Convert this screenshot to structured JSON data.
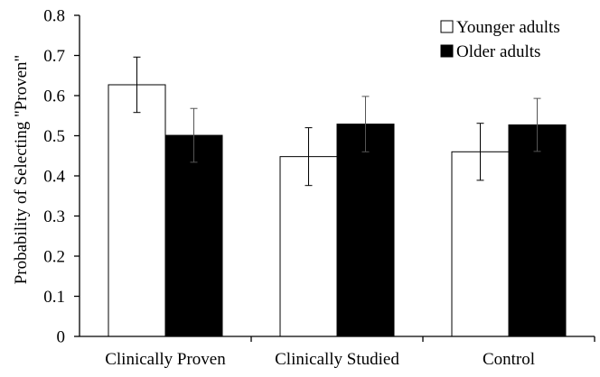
{
  "chart_data": {
    "type": "bar",
    "categories": [
      "Clinically Proven",
      "Clinically Studied",
      "Control"
    ],
    "series": [
      {
        "name": "Younger adults",
        "values": [
          0.627,
          0.448,
          0.46
        ],
        "error": [
          0.069,
          0.072,
          0.071
        ],
        "color": "#ffffff"
      },
      {
        "name": "Older adults",
        "values": [
          0.501,
          0.529,
          0.527
        ],
        "error": [
          0.067,
          0.069,
          0.066
        ],
        "color": "#000000"
      }
    ],
    "title": "",
    "xlabel": "",
    "ylabel": "Probability of Selecting \"Proven\"",
    "ylim": [
      0,
      0.8
    ],
    "yticks": [
      "0",
      "0.1",
      "0.2",
      "0.3",
      "0.4",
      "0.5",
      "0.6",
      "0.7",
      "0.8"
    ],
    "grid": false,
    "legend_position": "top-right",
    "error_bars": true
  }
}
